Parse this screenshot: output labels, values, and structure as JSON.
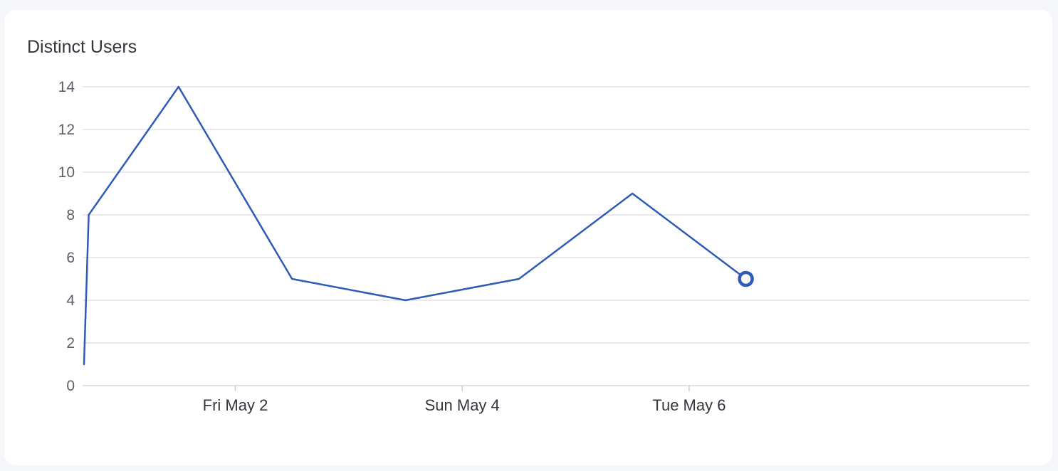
{
  "chart_data": {
    "type": "line",
    "title": "Distinct Users",
    "xlabel": "",
    "ylabel": "",
    "ylim": [
      0,
      14
    ],
    "yticks": [
      0,
      2,
      4,
      6,
      8,
      10,
      12,
      14
    ],
    "xlim": [
      "2025-04-30T16:00",
      "2025-05-09T00:00"
    ],
    "xticks": [
      {
        "label": "Fri May 2",
        "x": "2025-05-02T00:00"
      },
      {
        "label": "Sun May 4",
        "x": "2025-05-04T00:00"
      },
      {
        "label": "Tue May 6",
        "x": "2025-05-06T00:00"
      }
    ],
    "grid": true,
    "series": [
      {
        "color": "#2f5bb7",
        "points": [
          {
            "x": "2025-04-30T16:00",
            "y": 1
          },
          {
            "x": "2025-04-30T17:00",
            "y": 8
          },
          {
            "x": "2025-05-01T12:00",
            "y": 14
          },
          {
            "x": "2025-05-02T12:00",
            "y": 5
          },
          {
            "x": "2025-05-03T12:00",
            "y": 4
          },
          {
            "x": "2025-05-04T12:00",
            "y": 5
          },
          {
            "x": "2025-05-05T12:00",
            "y": 9
          },
          {
            "x": "2025-05-06T12:00",
            "y": 5
          }
        ]
      }
    ]
  }
}
